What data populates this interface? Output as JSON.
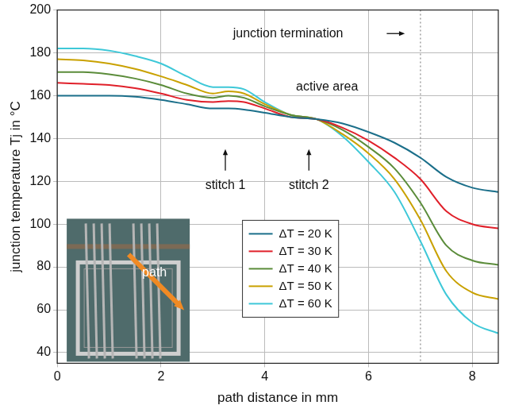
{
  "chart_data": {
    "type": "line",
    "x_label": "path distance in mm",
    "y_label": "junction temperature Tj in °C",
    "x": [
      0,
      0.5,
      1,
      1.5,
      2,
      2.5,
      3,
      3.3,
      3.6,
      4,
      4.5,
      5,
      5.5,
      6,
      6.5,
      7,
      7.5,
      8,
      8.5
    ],
    "series": [
      {
        "name": "ΔT = 20 K",
        "color": "#1b6f8a",
        "values": [
          160,
          160,
          160,
          159.5,
          158,
          156,
          154,
          154,
          153.5,
          152,
          150,
          149,
          147,
          143,
          138,
          131,
          122,
          117,
          115
        ]
      },
      {
        "name": "ΔT = 30 K",
        "color": "#e0202a",
        "values": [
          166,
          165.5,
          165,
          163.5,
          161,
          158,
          157,
          157.5,
          157,
          154,
          150,
          149,
          145,
          139,
          131,
          121,
          106,
          100,
          98
        ]
      },
      {
        "name": "ΔT = 40 K",
        "color": "#5b8c3a",
        "values": [
          171,
          171,
          170,
          168,
          165,
          161,
          159,
          160,
          159,
          155,
          151,
          149,
          144,
          136,
          126,
          110,
          90,
          83,
          81
        ]
      },
      {
        "name": "ΔT = 50 K",
        "color": "#c9a100",
        "values": [
          177,
          176.5,
          175,
          172.5,
          169,
          165,
          161,
          162,
          161,
          156,
          151,
          149,
          142,
          133,
          121,
          102,
          78,
          68,
          65
        ]
      },
      {
        "name": "ΔT = 60 K",
        "color": "#3ec8d8",
        "values": [
          182,
          182,
          181,
          178.5,
          175,
          169,
          164,
          164,
          163,
          157,
          151,
          149,
          141,
          129,
          115,
          92,
          67,
          54,
          49
        ]
      }
    ],
    "xlim": [
      0,
      8.5
    ],
    "ylim": [
      35,
      200
    ],
    "xticks": [
      0,
      2,
      4,
      6,
      8
    ],
    "yticks": [
      40,
      60,
      80,
      100,
      120,
      140,
      160,
      180,
      200
    ],
    "grid": true,
    "legend": "lower center",
    "vlines": [
      {
        "x": 7,
        "line_style": "dotted"
      }
    ],
    "annotations": [
      {
        "text": "junction termination",
        "x": 4.45,
        "y": 189,
        "arrow_from": [
          6.35,
          189
        ],
        "arrow_to": [
          6.7,
          189
        ]
      },
      {
        "text": "active area",
        "x": 5.2,
        "y": 164
      },
      {
        "text": "stitch 1",
        "x": 3.24,
        "y": 118,
        "arrow_from": [
          3.24,
          125
        ],
        "arrow_to": [
          3.24,
          135
        ]
      },
      {
        "text": "stitch 2",
        "x": 4.85,
        "y": 118,
        "arrow_from": [
          4.85,
          125
        ],
        "arrow_to": [
          4.85,
          135
        ]
      }
    ],
    "inset_label": "path"
  }
}
